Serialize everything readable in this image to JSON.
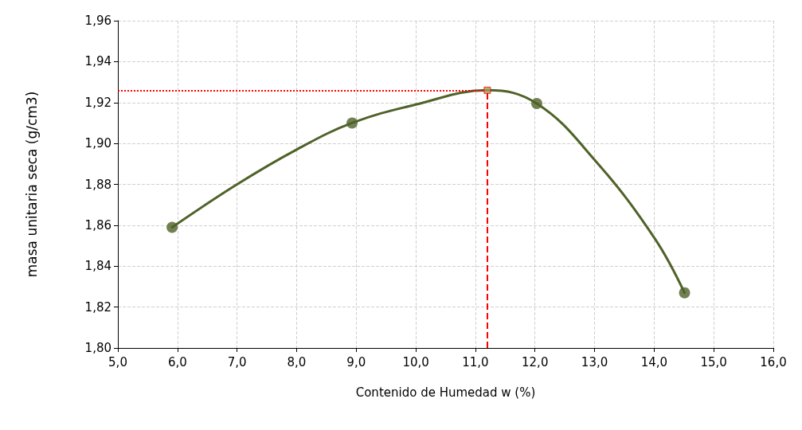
{
  "chart_data": {
    "type": "line",
    "xlabel": "Contenido de Humedad w (%)",
    "ylabel": "masa unitaria seca (g/cm3)",
    "xlim": [
      5,
      16
    ],
    "xticks": [
      {
        "value": 5,
        "label": "5,0"
      },
      {
        "value": 6,
        "label": "6,0"
      },
      {
        "value": 7,
        "label": "7,0"
      },
      {
        "value": 8,
        "label": "8,0"
      },
      {
        "value": 9,
        "label": "9,0"
      },
      {
        "value": 10,
        "label": "10,0"
      },
      {
        "value": 11,
        "label": "11,0"
      },
      {
        "value": 12,
        "label": "12,0"
      },
      {
        "value": 13,
        "label": "13,0"
      },
      {
        "value": 14,
        "label": "14,0"
      },
      {
        "value": 15,
        "label": "15,0"
      },
      {
        "value": 16,
        "label": "16,0"
      }
    ],
    "ylim": [
      1.8,
      1.96
    ],
    "yticks": [
      {
        "value": 1.8,
        "label": "1,80"
      },
      {
        "value": 1.82,
        "label": "1,82"
      },
      {
        "value": 1.84,
        "label": "1,84"
      },
      {
        "value": 1.86,
        "label": "1,86"
      },
      {
        "value": 1.88,
        "label": "1,88"
      },
      {
        "value": 1.9,
        "label": "1,90"
      },
      {
        "value": 1.92,
        "label": "1,92"
      },
      {
        "value": 1.94,
        "label": "1,94"
      },
      {
        "value": 1.96,
        "label": "1,96"
      }
    ],
    "grid": true,
    "line_style": "solid",
    "series": [
      {
        "marker": "none",
        "color": "#4f6228",
        "x": [
          5.91,
          7.0,
          8.0,
          8.93,
          10.0,
          11.2,
          12.03,
          13.0,
          14.0,
          14.51
        ],
        "values": [
          1.859,
          1.88,
          1.897,
          1.91,
          1.919,
          1.926,
          1.9195,
          1.892,
          1.854,
          1.827
        ]
      },
      {
        "type": "scatter",
        "marker": "circle",
        "color": "#4f6228",
        "x": [
          5.91,
          8.93,
          12.03,
          14.51
        ],
        "values": [
          1.859,
          1.91,
          1.9195,
          1.827
        ]
      },
      {
        "type": "scatter",
        "marker": "square",
        "color": "#a3a35a",
        "x": [
          11.2
        ],
        "values": [
          1.926
        ]
      }
    ],
    "ref_lines": [
      {
        "axis": "y",
        "value": 1.926,
        "color": "#ff0000",
        "line_style": "dotted"
      },
      {
        "axis": "x",
        "value": 11.2,
        "color": "#ff0000",
        "line_style": "dashed"
      }
    ]
  }
}
